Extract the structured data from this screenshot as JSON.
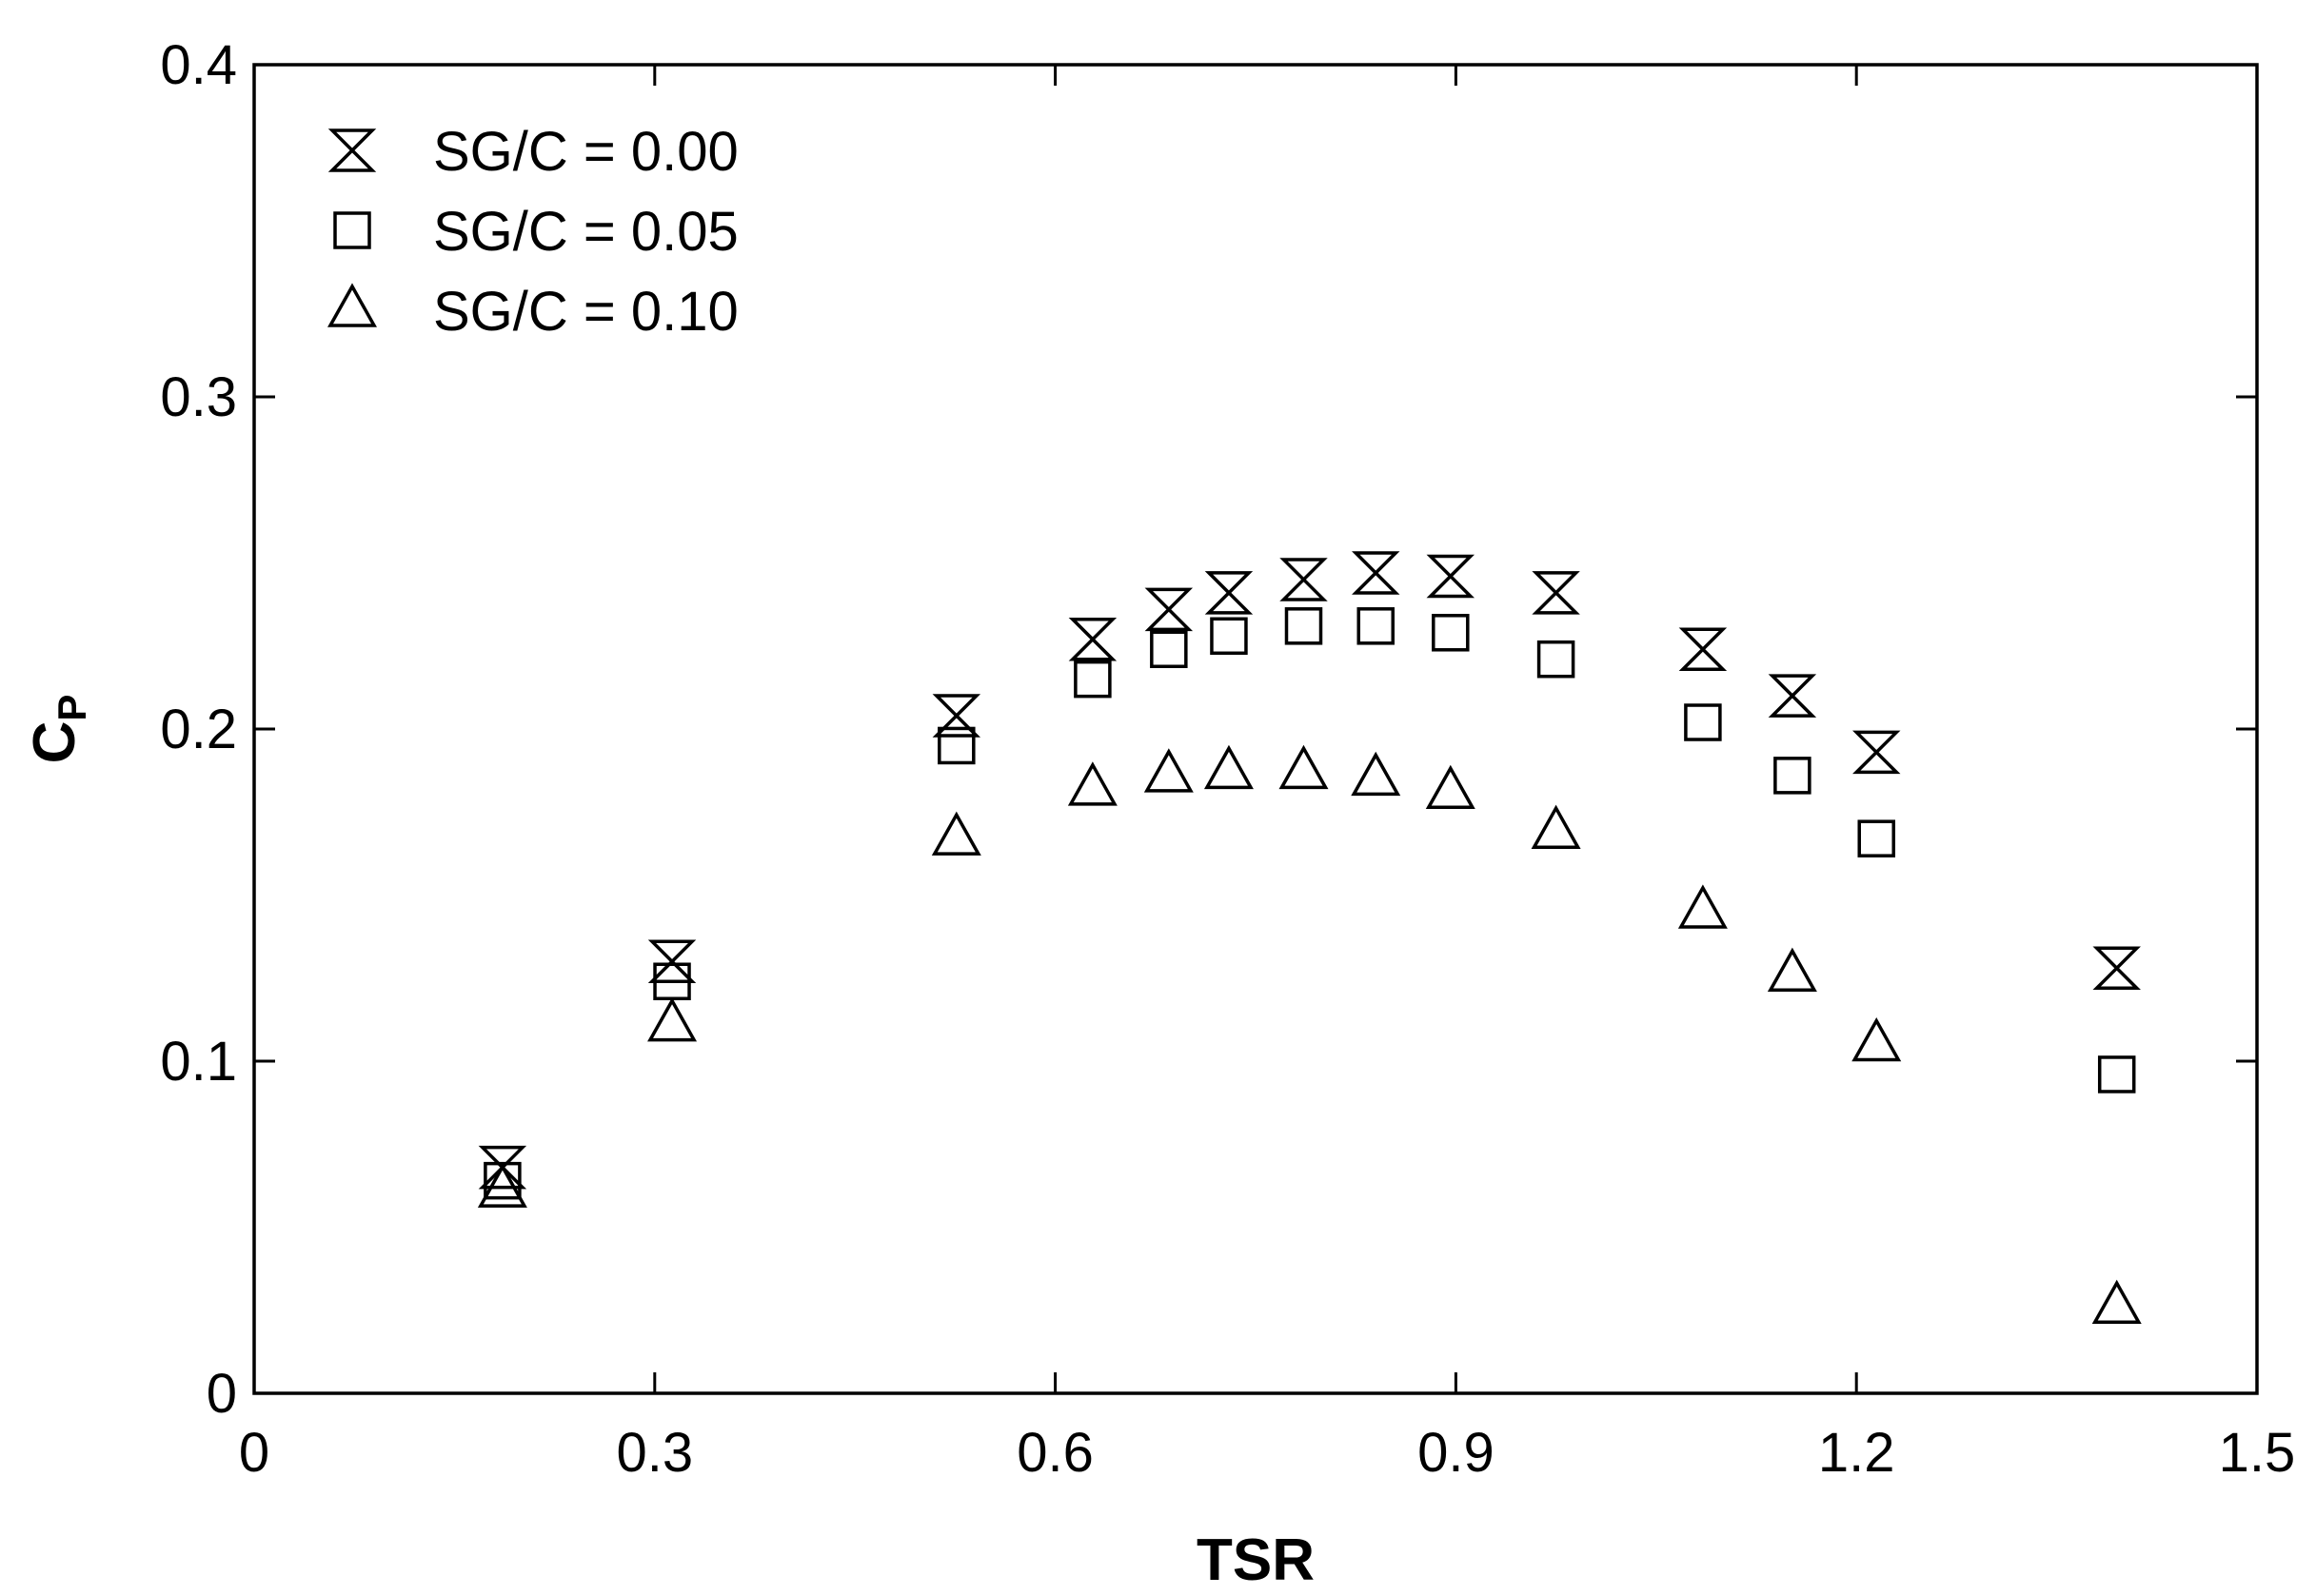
{
  "chart_data": {
    "type": "scatter",
    "xlabel": "TSR",
    "ylabel": "C",
    "ylabel_sub": "P",
    "xlim": [
      0,
      1.5
    ],
    "ylim": [
      0,
      0.4
    ],
    "xticks": [
      0,
      0.3,
      0.6,
      0.9,
      1.2,
      1.5
    ],
    "xtick_labels": [
      "0",
      "0.3",
      "0.6",
      "0.9",
      "1.2",
      "1.5"
    ],
    "yticks": [
      0,
      0.1,
      0.2,
      0.3,
      0.4
    ],
    "ytick_labels": [
      "0",
      "0.1",
      "0.2",
      "0.3",
      "0.4"
    ],
    "grid": false,
    "legend_position": "top-left",
    "series": [
      {
        "name": "SG/C = 0.00",
        "marker": "hourglass-x",
        "x": [
          0.186,
          0.313,
          0.526,
          0.628,
          0.685,
          0.73,
          0.786,
          0.84,
          0.896,
          0.975,
          1.085,
          1.152,
          1.215,
          1.395
        ],
        "y": [
          0.068,
          0.13,
          0.204,
          0.227,
          0.236,
          0.241,
          0.245,
          0.247,
          0.246,
          0.241,
          0.224,
          0.21,
          0.193,
          0.128
        ]
      },
      {
        "name": "SG/C = 0.05",
        "marker": "square",
        "x": [
          0.186,
          0.313,
          0.526,
          0.628,
          0.685,
          0.73,
          0.786,
          0.84,
          0.896,
          0.975,
          1.085,
          1.152,
          1.215,
          1.395
        ],
        "y": [
          0.064,
          0.124,
          0.195,
          0.215,
          0.224,
          0.228,
          0.231,
          0.231,
          0.229,
          0.221,
          0.202,
          0.186,
          0.167,
          0.096
        ]
      },
      {
        "name": "SG/C = 0.10",
        "marker": "triangle",
        "x": [
          0.186,
          0.313,
          0.526,
          0.628,
          0.685,
          0.73,
          0.786,
          0.84,
          0.896,
          0.975,
          1.085,
          1.152,
          1.215,
          1.395
        ],
        "y": [
          0.061,
          0.111,
          0.167,
          0.182,
          0.186,
          0.187,
          0.187,
          0.185,
          0.181,
          0.169,
          0.145,
          0.126,
          0.105,
          0.026
        ]
      }
    ]
  }
}
